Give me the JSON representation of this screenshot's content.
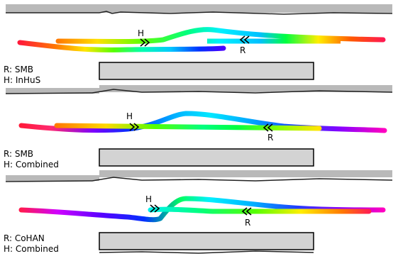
{
  "panels": [
    {
      "robot_label": "R: SMB",
      "human_label": "H: InHuS",
      "human_marker": "H",
      "robot_marker": "R"
    },
    {
      "robot_label": "R: SMB",
      "human_label": "H: Combined",
      "human_marker": "H",
      "robot_marker": "R"
    },
    {
      "robot_label": "R: CoHAN",
      "human_label": "H: Combined",
      "human_marker": "H",
      "robot_marker": "R"
    }
  ],
  "colors": {
    "wall": "#b9b9b9",
    "obstacle_fill": "#d3d3d3",
    "obstacle_stroke": "#000000",
    "marker": "#000000"
  }
}
